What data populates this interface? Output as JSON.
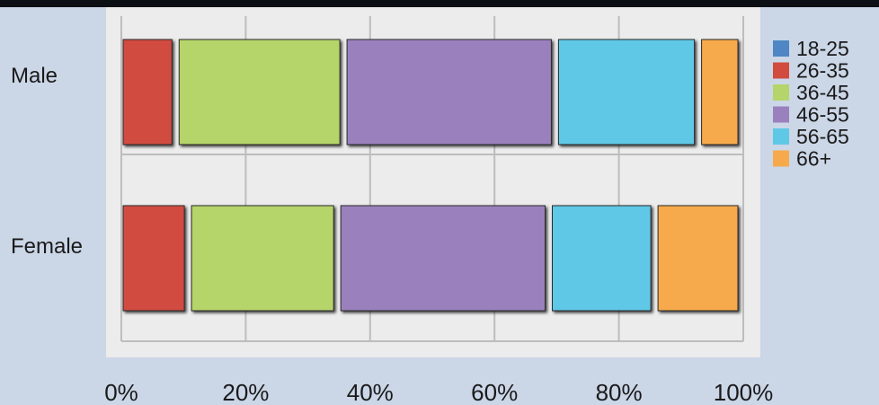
{
  "chart_data": {
    "type": "bar",
    "orientation": "horizontal",
    "stacked": true,
    "title": "",
    "xlabel": "",
    "ylabel": "",
    "categories": [
      "Male",
      "Female"
    ],
    "series": [
      {
        "name": "18-25",
        "color": "#4e87c4",
        "values": [
          0,
          0
        ]
      },
      {
        "name": "26-35",
        "color": "#d14b3f",
        "values": [
          9,
          11
        ]
      },
      {
        "name": "36-45",
        "color": "#b5d46a",
        "values": [
          27,
          24
        ]
      },
      {
        "name": "46-55",
        "color": "#9a81bd",
        "values": [
          34,
          34
        ]
      },
      {
        "name": "56-65",
        "color": "#5fc8e6",
        "values": [
          23,
          17
        ]
      },
      {
        "name": "66+",
        "color": "#f7aa4b",
        "values": [
          7,
          14
        ]
      }
    ],
    "xlim": [
      0,
      100
    ],
    "x_ticks": [
      "0%",
      "20%",
      "40%",
      "60%",
      "80%",
      "100%"
    ],
    "grid": true,
    "legend_position": "right"
  }
}
